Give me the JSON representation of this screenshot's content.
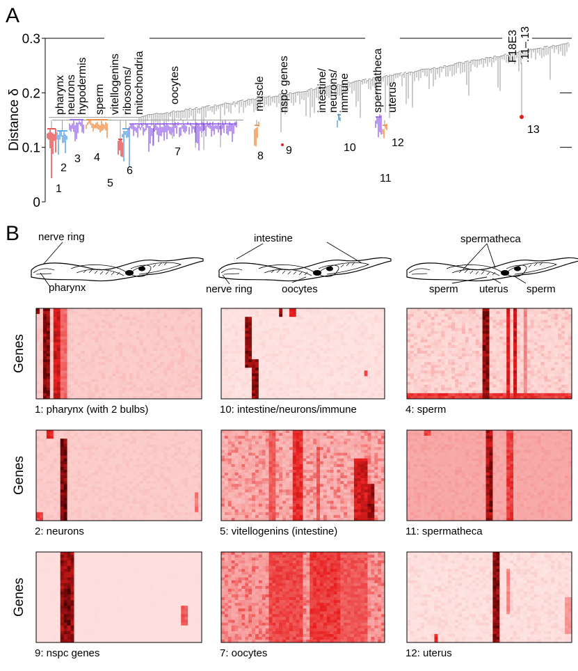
{
  "panel_a": {
    "label": "A",
    "y_label": "Distance δ",
    "ylim": [
      0,
      0.3
    ],
    "yticks": [
      0,
      0.1,
      0.2,
      0.3
    ],
    "cluster_labels": [
      [
        "pharynx"
      ],
      [
        "neurons"
      ],
      [
        "hypodermis"
      ],
      [
        "sperm"
      ],
      [
        "vitellogenins"
      ],
      [
        "ribosoms/",
        "mitochondria"
      ],
      [
        "oocytes"
      ],
      [
        "muscle"
      ],
      [
        "nspc genes"
      ],
      [
        "intestine/",
        "neurons/",
        "immune"
      ],
      [
        "spermatheca"
      ],
      [
        "uterus"
      ],
      [
        "F18E3",
        ".11–.13"
      ]
    ],
    "cluster_numbers": [
      "1",
      "2",
      "3",
      "4",
      "5",
      "6",
      "7",
      "8",
      "9",
      "10",
      "11",
      "12",
      "13"
    ]
  },
  "panel_b": {
    "label": "B",
    "gene_label": "Genes",
    "worms": [
      [
        "nerve ring",
        "pharynx"
      ],
      [
        "intestine",
        "nerve ring",
        "oocytes"
      ],
      [
        "spermatheca",
        "sperm",
        "uterus",
        "sperm"
      ]
    ],
    "heatmaps": [
      "1: pharynx (with 2 bulbs)",
      "10: intestine/neurons/immune",
      "4: sperm",
      "2: neurons",
      "5: vitellogenins (intestine)",
      "11: spermatheca",
      "9: nspc genes",
      "7: oocytes",
      "12: uterus"
    ]
  }
}
